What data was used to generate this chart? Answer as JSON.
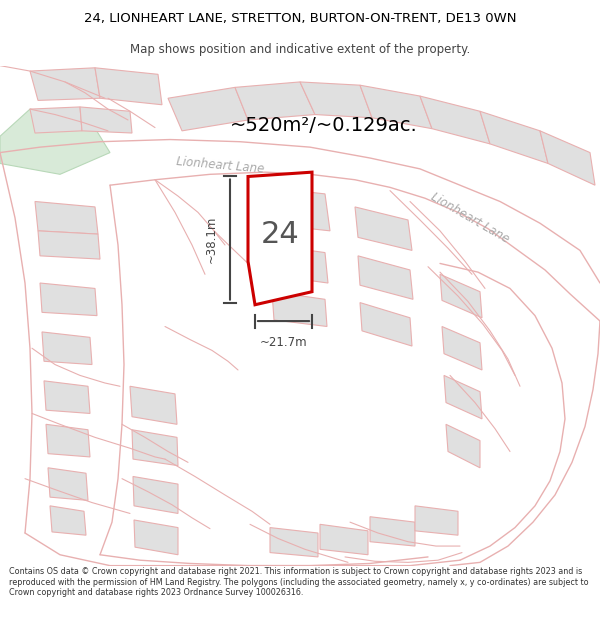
{
  "title": "24, LIONHEART LANE, STRETTON, BURTON-ON-TRENT, DE13 0WN",
  "subtitle": "Map shows position and indicative extent of the property.",
  "area_text": "~520m²/~0.129ac.",
  "label_24": "24",
  "dim_width": "~21.7m",
  "dim_height": "~38.1m",
  "road_label1": "Lionheart Lane",
  "road_label2": "Lionheart Lane",
  "footer": "Contains OS data © Crown copyright and database right 2021. This information is subject to Crown copyright and database rights 2023 and is reproduced with the permission of HM Land Registry. The polygons (including the associated geometry, namely x, y co-ordinates) are subject to Crown copyright and database rights 2023 Ordnance Survey 100026316.",
  "bg_color": "#ffffff",
  "map_bg": "#ffffff",
  "plot_fill": "#ffffff",
  "plot_edge": "#cc0000",
  "road_color": "#e8b0b0",
  "building_fill": "#e0e0e0",
  "building_edge": "#e8b0b0",
  "green_fill": "#d8ead8",
  "title_color": "#000000",
  "footer_color": "#333333",
  "dim_color": "#444444",
  "road_label_color": "#aaaaaa",
  "area_color": "#000000"
}
